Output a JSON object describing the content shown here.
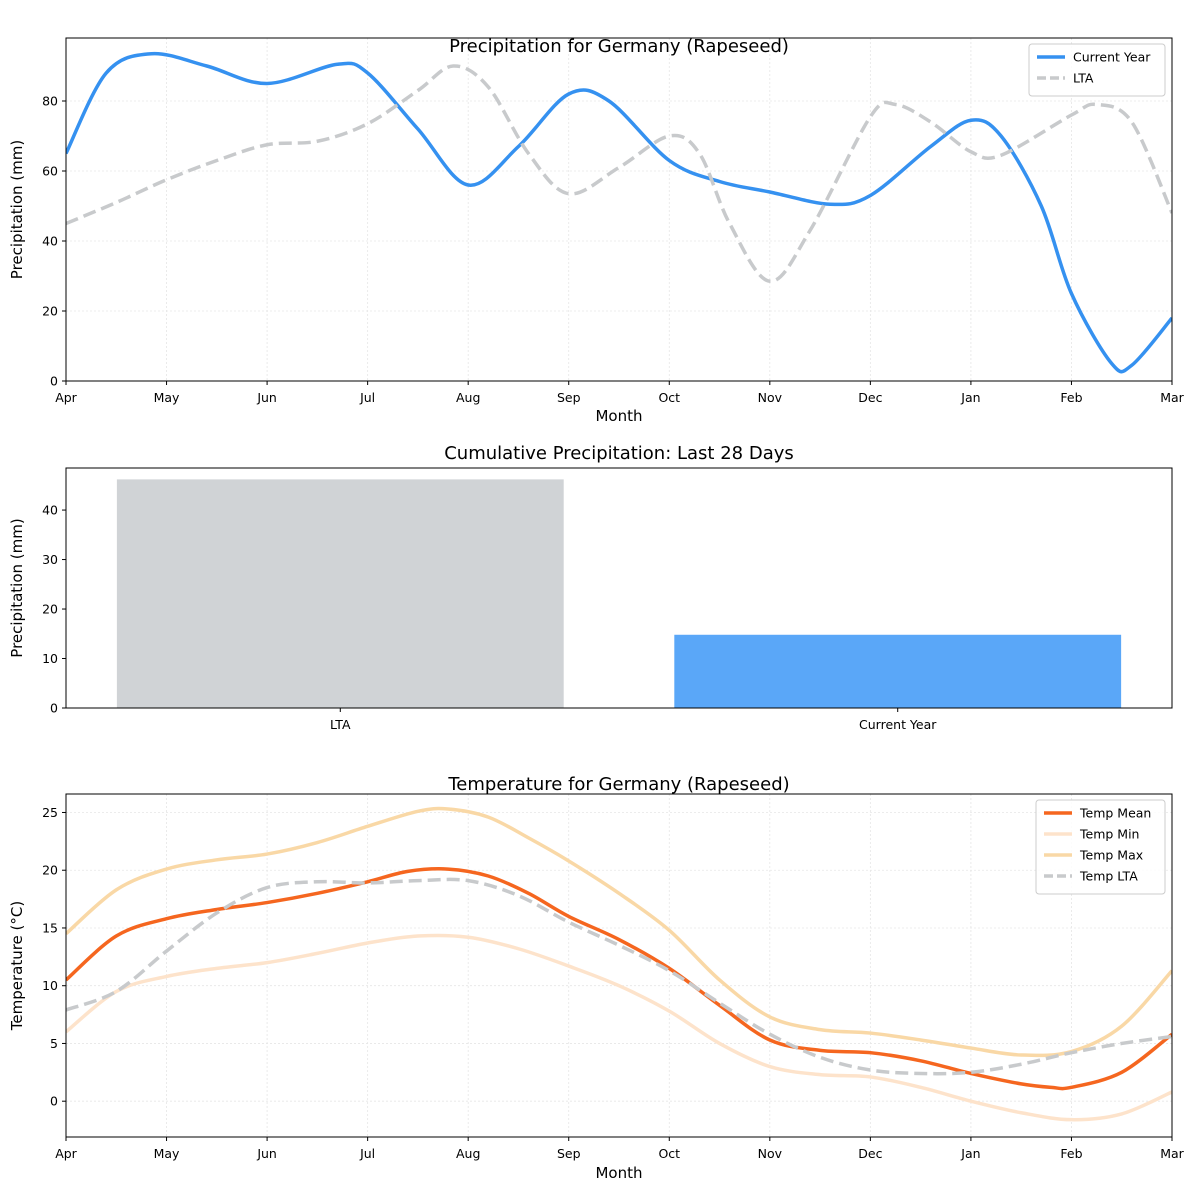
{
  "chart_data": [
    {
      "type": "line",
      "title": "Precipitation for Germany (Rapeseed)",
      "xlabel": "Month",
      "ylabel": "Precipitation (mm)",
      "categories": [
        "Apr",
        "May",
        "Jun",
        "Jul",
        "Aug",
        "Sep",
        "Oct",
        "Nov",
        "Dec",
        "Jan",
        "Feb",
        "Mar"
      ],
      "ylim": [
        0,
        98
      ],
      "yticks": [
        0,
        20,
        40,
        60,
        80
      ],
      "grid": true,
      "legend": "top-right",
      "series": [
        {
          "name": "Current Year",
          "color": "#3591f0",
          "dash": "solid",
          "points": [
            [
              0,
              65
            ],
            [
              0.4,
              88
            ],
            [
              0.85,
              93.5
            ],
            [
              1.4,
              90
            ],
            [
              2,
              85
            ],
            [
              2.7,
              90.5
            ],
            [
              3,
              88
            ],
            [
              3.5,
              72
            ],
            [
              4,
              56
            ],
            [
              4.5,
              67
            ],
            [
              5,
              82
            ],
            [
              5.4,
              80
            ],
            [
              6,
              63
            ],
            [
              6.5,
              57
            ],
            [
              7,
              54
            ],
            [
              7.6,
              50.5
            ],
            [
              8,
              53
            ],
            [
              8.6,
              67
            ],
            [
              9,
              74.5
            ],
            [
              9.3,
              70
            ],
            [
              9.7,
              50
            ],
            [
              10,
              25
            ],
            [
              10.4,
              5
            ],
            [
              10.6,
              4.5
            ],
            [
              11,
              18
            ]
          ]
        },
        {
          "name": "LTA",
          "color": "#c8cacc",
          "dash": "dashed",
          "points": [
            [
              0,
              45
            ],
            [
              0.5,
              51
            ],
            [
              1,
              57.5
            ],
            [
              1.5,
              63
            ],
            [
              2,
              67.5
            ],
            [
              2.5,
              68.5
            ],
            [
              3,
              73.5
            ],
            [
              3.5,
              83
            ],
            [
              3.85,
              90
            ],
            [
              4.2,
              84
            ],
            [
              4.6,
              65
            ],
            [
              5,
              53.5
            ],
            [
              5.5,
              61
            ],
            [
              6,
              70
            ],
            [
              6.3,
              65
            ],
            [
              6.6,
              45
            ],
            [
              7,
              28.5
            ],
            [
              7.4,
              43
            ],
            [
              8,
              75.5
            ],
            [
              8.25,
              79
            ],
            [
              8.6,
              74
            ],
            [
              9,
              65.5
            ],
            [
              9.3,
              64.5
            ],
            [
              10,
              76
            ],
            [
              10.25,
              79
            ],
            [
              10.6,
              74
            ],
            [
              11,
              48
            ]
          ]
        }
      ]
    },
    {
      "type": "bar",
      "title": "Cumulative Precipitation: Last 28 Days",
      "ylabel": "Precipitation (mm)",
      "categories": [
        "LTA",
        "Current Year"
      ],
      "values": [
        46.2,
        14.8
      ],
      "colors": [
        "#d0d3d6",
        "#5aa7f8"
      ],
      "ylim": [
        0,
        48.5
      ],
      "yticks": [
        0,
        10,
        20,
        30,
        40
      ],
      "grid": false
    },
    {
      "type": "line",
      "title": "Temperature for Germany (Rapeseed)",
      "xlabel": "Month",
      "ylabel": "Temperature (°C)",
      "categories": [
        "Apr",
        "May",
        "Jun",
        "Jul",
        "Aug",
        "Sep",
        "Oct",
        "Nov",
        "Dec",
        "Jan",
        "Feb",
        "Mar"
      ],
      "ylim": [
        -3.1,
        26.6
      ],
      "yticks": [
        0,
        5,
        10,
        15,
        20,
        25
      ],
      "grid": true,
      "legend": "top-right",
      "series": [
        {
          "name": "Temp Mean",
          "color": "#f5661f",
          "dash": "solid",
          "width": 3.5,
          "points": [
            [
              0,
              10.5
            ],
            [
              0.5,
              14.3
            ],
            [
              1,
              15.8
            ],
            [
              1.5,
              16.6
            ],
            [
              2,
              17.2
            ],
            [
              2.5,
              18
            ],
            [
              3,
              19
            ],
            [
              3.4,
              19.9
            ],
            [
              3.8,
              20.1
            ],
            [
              4.2,
              19.5
            ],
            [
              4.6,
              18
            ],
            [
              5,
              16
            ],
            [
              5.5,
              14
            ],
            [
              6,
              11.5
            ],
            [
              6.5,
              8.3
            ],
            [
              7,
              5.3
            ],
            [
              7.5,
              4.4
            ],
            [
              8,
              4.2
            ],
            [
              8.5,
              3.5
            ],
            [
              9,
              2.4
            ],
            [
              9.5,
              1.5
            ],
            [
              9.8,
              1.2
            ],
            [
              10,
              1.2
            ],
            [
              10.5,
              2.5
            ],
            [
              11,
              5.8
            ]
          ]
        },
        {
          "name": "Temp Min",
          "color": "#fde3cb",
          "dash": "solid",
          "width": 3.5,
          "points": [
            [
              0,
              6
            ],
            [
              0.5,
              9.5
            ],
            [
              1,
              10.8
            ],
            [
              1.5,
              11.5
            ],
            [
              2,
              12
            ],
            [
              2.5,
              12.8
            ],
            [
              3,
              13.7
            ],
            [
              3.5,
              14.3
            ],
            [
              4,
              14.2
            ],
            [
              4.5,
              13.2
            ],
            [
              5,
              11.7
            ],
            [
              5.5,
              10
            ],
            [
              6,
              7.8
            ],
            [
              6.5,
              5
            ],
            [
              7,
              3
            ],
            [
              7.5,
              2.3
            ],
            [
              8,
              2.1
            ],
            [
              8.5,
              1.2
            ],
            [
              9,
              0
            ],
            [
              9.5,
              -1
            ],
            [
              10,
              -1.6
            ],
            [
              10.5,
              -1.1
            ],
            [
              11,
              0.8
            ]
          ]
        },
        {
          "name": "Temp Max",
          "color": "#f9d8a6",
          "dash": "solid",
          "width": 3.5,
          "points": [
            [
              0,
              14.5
            ],
            [
              0.5,
              18.3
            ],
            [
              1,
              20.1
            ],
            [
              1.5,
              20.9
            ],
            [
              2,
              21.4
            ],
            [
              2.5,
              22.4
            ],
            [
              3,
              23.8
            ],
            [
              3.5,
              25.1
            ],
            [
              3.8,
              25.3
            ],
            [
              4.2,
              24.6
            ],
            [
              4.6,
              22.8
            ],
            [
              5,
              20.8
            ],
            [
              5.5,
              18
            ],
            [
              6,
              14.8
            ],
            [
              6.5,
              10.5
            ],
            [
              7,
              7.3
            ],
            [
              7.5,
              6.2
            ],
            [
              8,
              5.9
            ],
            [
              8.5,
              5.3
            ],
            [
              9,
              4.6
            ],
            [
              9.5,
              4
            ],
            [
              10,
              4.3
            ],
            [
              10.5,
              6.5
            ],
            [
              11,
              11.3
            ]
          ]
        },
        {
          "name": "Temp LTA",
          "color": "#c8cacc",
          "dash": "dashed",
          "width": 3.5,
          "points": [
            [
              0,
              7.9
            ],
            [
              0.5,
              9.5
            ],
            [
              1,
              13
            ],
            [
              1.5,
              16.3
            ],
            [
              2,
              18.5
            ],
            [
              2.5,
              19
            ],
            [
              3,
              18.9
            ],
            [
              3.5,
              19.1
            ],
            [
              4,
              19.1
            ],
            [
              4.5,
              17.8
            ],
            [
              5,
              15.5
            ],
            [
              5.5,
              13.5
            ],
            [
              6,
              11.3
            ],
            [
              6.5,
              8.5
            ],
            [
              7,
              5.8
            ],
            [
              7.5,
              3.8
            ],
            [
              8,
              2.7
            ],
            [
              8.5,
              2.4
            ],
            [
              9,
              2.5
            ],
            [
              9.5,
              3.2
            ],
            [
              10,
              4.2
            ],
            [
              10.5,
              5
            ],
            [
              11,
              5.6
            ]
          ]
        }
      ]
    }
  ]
}
